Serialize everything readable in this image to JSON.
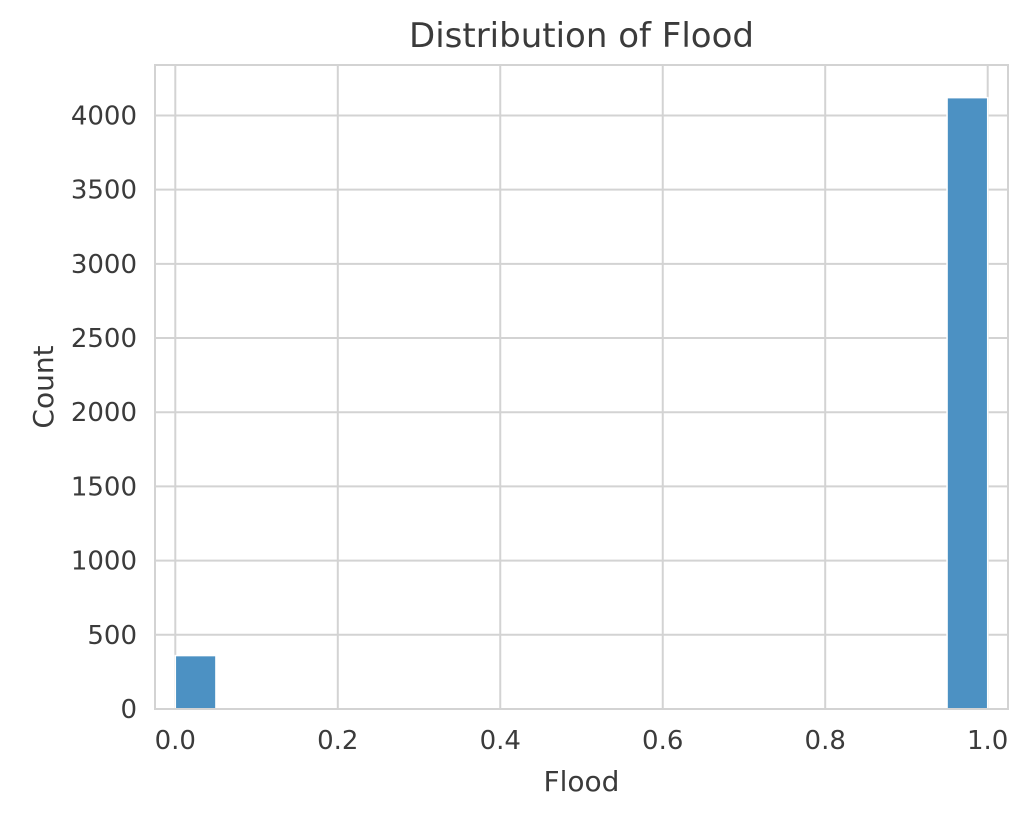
{
  "chart_data": {
    "type": "bar",
    "title": "Distribution of Flood",
    "xlabel": "Flood",
    "ylabel": "Count",
    "xlim": [
      -0.025,
      1.025
    ],
    "ylim": [
      0,
      4340
    ],
    "xticks": [
      0.0,
      0.2,
      0.4,
      0.6,
      0.8,
      1.0
    ],
    "xtick_labels": [
      "0.0",
      "0.2",
      "0.4",
      "0.6",
      "0.8",
      "1.0"
    ],
    "yticks": [
      0,
      500,
      1000,
      1500,
      2000,
      2500,
      3000,
      3500,
      4000
    ],
    "ytick_labels": [
      "0",
      "500",
      "1000",
      "1500",
      "2000",
      "2500",
      "3000",
      "3500",
      "4000"
    ],
    "grid": true,
    "bin_width": 0.05,
    "bins": [
      {
        "x_start": 0.0,
        "x_end": 0.05,
        "count": 360
      },
      {
        "x_start": 0.95,
        "x_end": 1.0,
        "count": 4120
      }
    ],
    "colors": {
      "bar": "#4c91c3",
      "grid": "#d3d3d3",
      "text": "#3b3b3b"
    }
  }
}
